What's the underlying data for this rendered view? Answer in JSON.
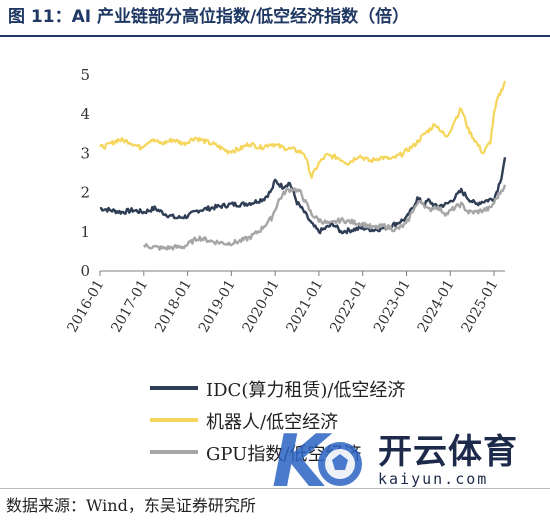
{
  "header": {
    "title": "图 11：AI 产业链部分高位指数/低空经济指数（倍）"
  },
  "source": "数据来源：Wind，东吴证券研究所",
  "watermark": {
    "brand": "开云体育",
    "url": "kaiyun.com"
  },
  "chart_data": {
    "type": "line",
    "x_ticks": [
      "2016-01",
      "2017-01",
      "2018-01",
      "2019-01",
      "2020-01",
      "2021-01",
      "2022-01",
      "2023-01",
      "2024-01",
      "2025-01"
    ],
    "x_range": [
      "2016-01",
      "2025-04"
    ],
    "ylim": [
      0,
      5
    ],
    "y_ticks": [
      0,
      1,
      2,
      3,
      4,
      5
    ],
    "grid": false,
    "legend_position": "bottom",
    "series": [
      {
        "name": "IDC(算力租赁)/低空经济",
        "color": "#2f3d55",
        "x": [
          "2016-01",
          "2016-04",
          "2016-07",
          "2016-10",
          "2017-01",
          "2017-04",
          "2017-07",
          "2017-10",
          "2018-01",
          "2018-04",
          "2018-07",
          "2018-10",
          "2019-01",
          "2019-04",
          "2019-07",
          "2019-10",
          "2019-12",
          "2020-01",
          "2020-03",
          "2020-05",
          "2020-07",
          "2020-09",
          "2020-11",
          "2021-01",
          "2021-03",
          "2021-05",
          "2021-07",
          "2021-10",
          "2022-01",
          "2022-04",
          "2022-07",
          "2022-10",
          "2023-01",
          "2023-02",
          "2023-04",
          "2023-06",
          "2023-07",
          "2023-09",
          "2023-12",
          "2024-02",
          "2024-04",
          "2024-06",
          "2024-08",
          "2024-09",
          "2024-11",
          "2025-01",
          "2025-02",
          "2025-03",
          "2025-04"
        ],
        "y": [
          1.6,
          1.55,
          1.5,
          1.55,
          1.5,
          1.6,
          1.45,
          1.35,
          1.4,
          1.55,
          1.6,
          1.65,
          1.7,
          1.7,
          1.75,
          1.85,
          2.05,
          2.3,
          2.15,
          2.25,
          1.75,
          1.5,
          1.2,
          1.0,
          1.1,
          1.2,
          1.0,
          1.05,
          1.1,
          1.05,
          1.1,
          1.2,
          1.35,
          1.5,
          1.85,
          1.7,
          1.8,
          1.65,
          1.7,
          1.85,
          2.05,
          1.85,
          1.7,
          1.75,
          1.8,
          1.85,
          2.1,
          2.4,
          2.9
        ]
      },
      {
        "name": "机器人/低空经济",
        "color": "#f5d55a",
        "x": [
          "2016-01",
          "2016-03",
          "2016-06",
          "2016-09",
          "2016-12",
          "2017-03",
          "2017-06",
          "2017-09",
          "2017-12",
          "2018-03",
          "2018-06",
          "2018-09",
          "2018-12",
          "2019-03",
          "2019-06",
          "2019-09",
          "2019-12",
          "2020-03",
          "2020-06",
          "2020-09",
          "2020-11",
          "2021-01",
          "2021-03",
          "2021-06",
          "2021-09",
          "2021-12",
          "2022-03",
          "2022-06",
          "2022-09",
          "2022-12",
          "2023-03",
          "2023-06",
          "2023-09",
          "2023-12",
          "2024-02",
          "2024-04",
          "2024-06",
          "2024-08",
          "2024-10",
          "2024-12",
          "2025-01",
          "2025-02",
          "2025-03",
          "2025-04"
        ],
        "y": [
          3.15,
          3.2,
          3.35,
          3.3,
          3.15,
          3.35,
          3.25,
          3.35,
          3.25,
          3.4,
          3.3,
          3.2,
          3.05,
          3.1,
          3.25,
          3.15,
          3.25,
          3.15,
          3.1,
          3.0,
          2.4,
          2.75,
          2.95,
          2.9,
          2.75,
          2.95,
          2.8,
          2.9,
          2.85,
          3.0,
          3.2,
          3.5,
          3.75,
          3.4,
          3.8,
          4.15,
          3.6,
          3.3,
          3.0,
          3.3,
          4.0,
          4.4,
          4.6,
          4.85
        ]
      },
      {
        "name": "GPU指数/低空经济",
        "color": "#a6a6a6",
        "x": [
          "2017-01",
          "2017-06",
          "2017-12",
          "2018-04",
          "2018-08",
          "2018-12",
          "2019-03",
          "2019-06",
          "2019-09",
          "2019-12",
          "2020-02",
          "2020-04",
          "2020-06",
          "2020-08",
          "2020-11",
          "2021-01",
          "2021-04",
          "2021-07",
          "2021-10",
          "2022-01",
          "2022-04",
          "2022-07",
          "2022-10",
          "2023-01",
          "2023-03",
          "2023-05",
          "2023-07",
          "2023-09",
          "2023-12",
          "2024-02",
          "2024-04",
          "2024-06",
          "2024-08",
          "2024-10",
          "2024-12",
          "2025-01",
          "2025-02",
          "2025-03",
          "2025-04"
        ],
        "y": [
          0.65,
          0.58,
          0.62,
          0.85,
          0.75,
          0.7,
          0.75,
          0.85,
          1.05,
          1.35,
          1.8,
          2.05,
          2.1,
          2.0,
          1.45,
          1.3,
          1.2,
          1.3,
          1.25,
          1.2,
          1.1,
          1.15,
          1.05,
          1.2,
          1.6,
          1.8,
          1.55,
          1.65,
          1.45,
          1.6,
          1.7,
          1.5,
          1.5,
          1.55,
          1.6,
          1.75,
          1.9,
          2.05,
          2.2
        ]
      }
    ]
  }
}
